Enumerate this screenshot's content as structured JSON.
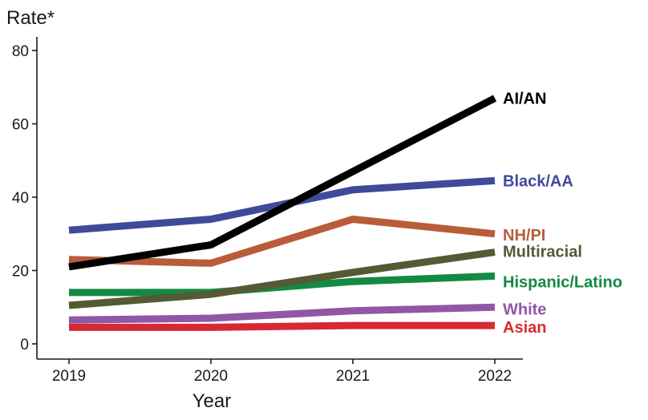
{
  "chart_data": {
    "type": "line",
    "title": "",
    "xlabel": "Year",
    "ylabel": "Rate*",
    "x": [
      2019,
      2020,
      2021,
      2022
    ],
    "x_tick_labels": [
      "2019",
      "2020",
      "2021",
      "2022"
    ],
    "ylim": [
      0,
      80
    ],
    "y_ticks": [
      0,
      20,
      40,
      60,
      80
    ],
    "y_tick_labels": [
      "0",
      "20",
      "40",
      "60",
      "80"
    ],
    "grid": false,
    "legend": "direct labels at right end of lines",
    "series": [
      {
        "name": "AI/AN",
        "color": "#000000",
        "values": [
          21.0,
          27.0,
          47.0,
          67.0
        ]
      },
      {
        "name": "Black/AA",
        "color": "#3f4a9b",
        "values": [
          31.0,
          34.0,
          42.0,
          44.5
        ]
      },
      {
        "name": "NH/PI",
        "color": "#b85c3a",
        "values": [
          23.0,
          22.0,
          34.0,
          30.0
        ]
      },
      {
        "name": "Multiracial",
        "color": "#545a34",
        "values": [
          10.5,
          13.5,
          19.5,
          25.0
        ]
      },
      {
        "name": "Hispanic/Latino",
        "color": "#138a43",
        "values": [
          14.0,
          14.0,
          17.0,
          18.5
        ]
      },
      {
        "name": "White",
        "color": "#9157a6",
        "values": [
          6.5,
          7.0,
          9.0,
          10.0
        ]
      },
      {
        "name": "Asian",
        "color": "#d62a32",
        "values": [
          4.5,
          4.5,
          5.0,
          5.0
        ]
      }
    ]
  }
}
